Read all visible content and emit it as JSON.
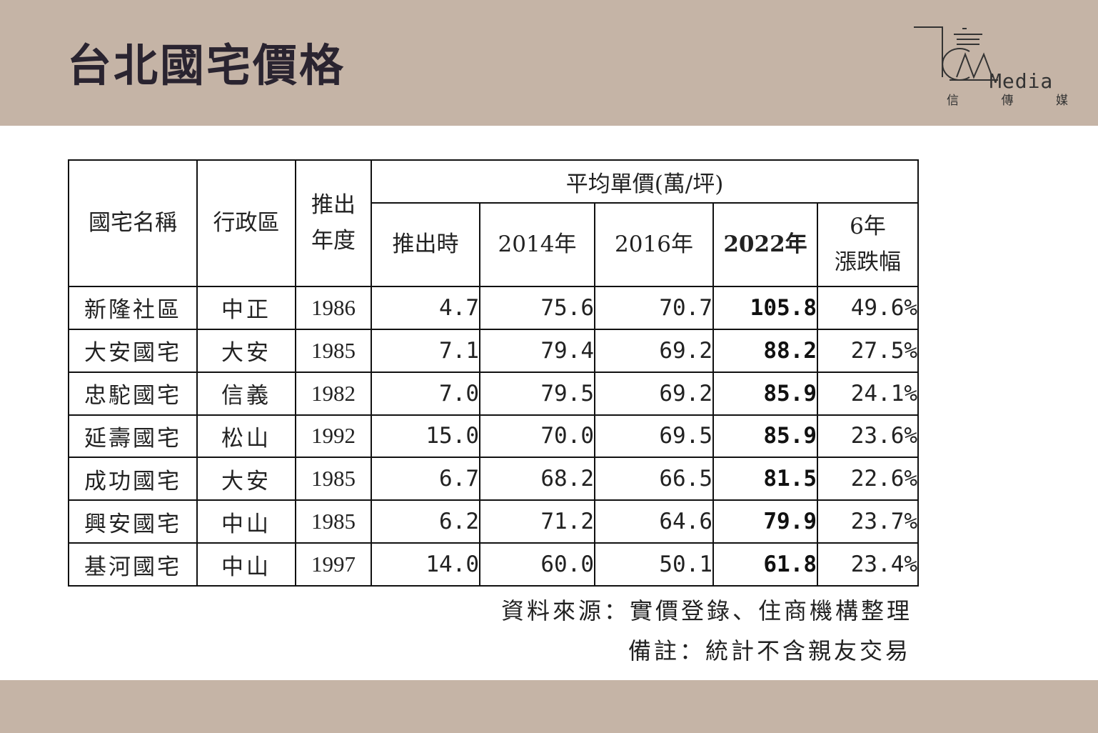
{
  "title": "台北國宅價格",
  "logo": {
    "word": "Media",
    "sub": [
      "信",
      "傳",
      "媒"
    ]
  },
  "table": {
    "headers": {
      "name": "國宅名稱",
      "district": "行政區",
      "launch_year": [
        "推出",
        "年度"
      ],
      "avg_price": "平均單價(萬/坪)",
      "at_launch": "推出時",
      "y2014": "2014年",
      "y2016": "2016年",
      "y2022": "2022年",
      "change": [
        "6年",
        "漲跌幅"
      ]
    },
    "rows": [
      {
        "name": "新隆社區",
        "district": "中正",
        "year": "1986",
        "launch": "4.7",
        "y2014": "75.6",
        "y2016": "70.7",
        "y2022": "105.8",
        "change": "49.6%"
      },
      {
        "name": "大安國宅",
        "district": "大安",
        "year": "1985",
        "launch": "7.1",
        "y2014": "79.4",
        "y2016": "69.2",
        "y2022": "88.2",
        "change": "27.5%"
      },
      {
        "name": "忠駝國宅",
        "district": "信義",
        "year": "1982",
        "launch": "7.0",
        "y2014": "79.5",
        "y2016": "69.2",
        "y2022": "85.9",
        "change": "24.1%"
      },
      {
        "name": "延壽國宅",
        "district": "松山",
        "year": "1992",
        "launch": "15.0",
        "y2014": "70.0",
        "y2016": "69.5",
        "y2022": "85.9",
        "change": "23.6%"
      },
      {
        "name": "成功國宅",
        "district": "大安",
        "year": "1985",
        "launch": "6.7",
        "y2014": "68.2",
        "y2016": "66.5",
        "y2022": "81.5",
        "change": "22.6%"
      },
      {
        "name": "興安國宅",
        "district": "中山",
        "year": "1985",
        "launch": "6.2",
        "y2014": "71.2",
        "y2016": "64.6",
        "y2022": "79.9",
        "change": "23.7%"
      },
      {
        "name": "基河國宅",
        "district": "中山",
        "year": "1997",
        "launch": "14.0",
        "y2014": "60.0",
        "y2016": "50.1",
        "y2022": "61.8",
        "change": "23.4%"
      }
    ]
  },
  "source": "資料來源：實價登錄、住商機構整理",
  "note": "備註：統計不含親友交易",
  "colors": {
    "band": "#c5b4a6",
    "title": "#2a2430"
  }
}
